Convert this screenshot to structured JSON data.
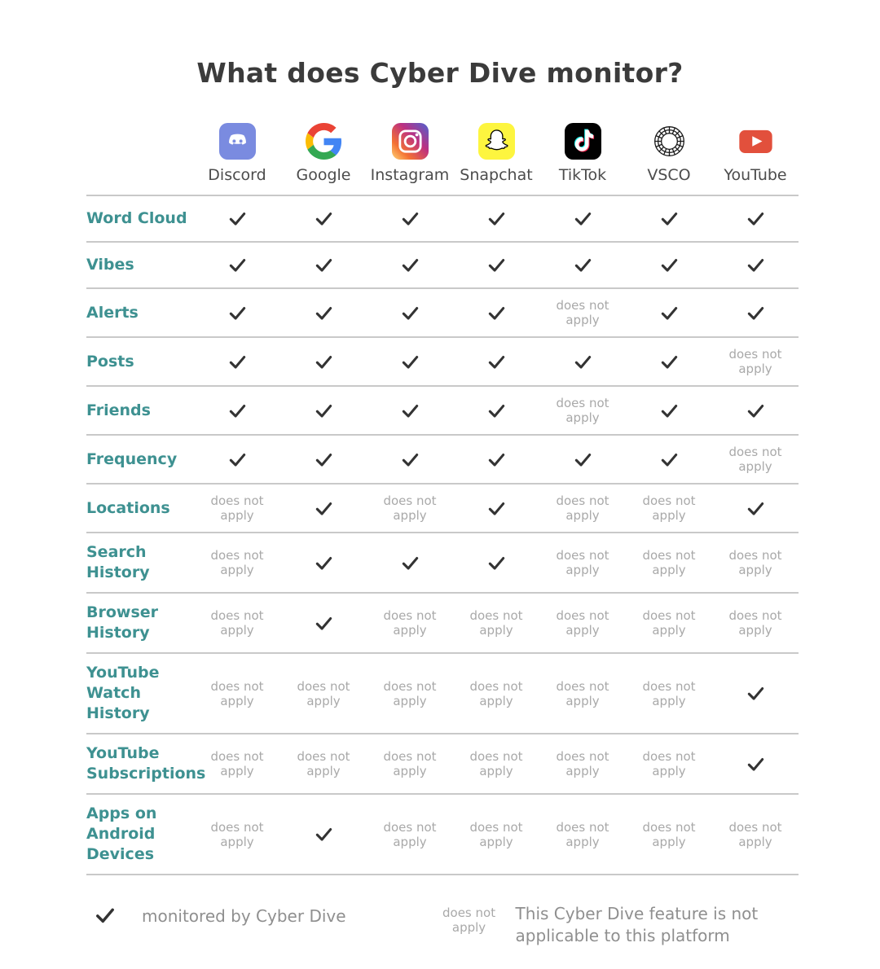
{
  "na_text": "does not apply",
  "platforms": [
    {
      "name": "Discord",
      "icon": "discord-icon"
    },
    {
      "name": "Google",
      "icon": "google-icon"
    },
    {
      "name": "Instagram",
      "icon": "instagram-icon"
    },
    {
      "name": "Snapchat",
      "icon": "snapchat-icon"
    },
    {
      "name": "TikTok",
      "icon": "tiktok-icon"
    },
    {
      "name": "VSCO",
      "icon": "vsco-icon"
    },
    {
      "name": "YouTube",
      "icon": "youtube-icon"
    }
  ],
  "chart_data": {
    "type": "table",
    "title": "What does Cyber Dive monitor?",
    "columns": [
      "Discord",
      "Google",
      "Instagram",
      "Snapchat",
      "TikTok",
      "VSCO",
      "YouTube"
    ],
    "rows": [
      {
        "feature": "Word Cloud",
        "cells": [
          "check",
          "check",
          "check",
          "check",
          "check",
          "check",
          "check"
        ]
      },
      {
        "feature": "Vibes",
        "cells": [
          "check",
          "check",
          "check",
          "check",
          "check",
          "check",
          "check"
        ]
      },
      {
        "feature": "Alerts",
        "cells": [
          "check",
          "check",
          "check",
          "check",
          "na",
          "check",
          "check"
        ]
      },
      {
        "feature": "Posts",
        "cells": [
          "check",
          "check",
          "check",
          "check",
          "check",
          "check",
          "na"
        ]
      },
      {
        "feature": "Friends",
        "cells": [
          "check",
          "check",
          "check",
          "check",
          "na",
          "check",
          "check"
        ]
      },
      {
        "feature": "Frequency",
        "cells": [
          "check",
          "check",
          "check",
          "check",
          "check",
          "check",
          "na"
        ]
      },
      {
        "feature": "Locations",
        "cells": [
          "na",
          "check",
          "na",
          "check",
          "na",
          "na",
          "check"
        ]
      },
      {
        "feature": "Search History",
        "cells": [
          "na",
          "check",
          "check",
          "check",
          "na",
          "na",
          "na"
        ]
      },
      {
        "feature": "Browser History",
        "cells": [
          "na",
          "check",
          "na",
          "na",
          "na",
          "na",
          "na"
        ]
      },
      {
        "feature": "YouTube Watch History",
        "cells": [
          "na",
          "na",
          "na",
          "na",
          "na",
          "na",
          "check"
        ]
      },
      {
        "feature": "YouTube Subscriptions",
        "cells": [
          "na",
          "na",
          "na",
          "na",
          "na",
          "na",
          "check"
        ]
      },
      {
        "feature": "Apps on Android Devices",
        "cells": [
          "na",
          "check",
          "na",
          "na",
          "na",
          "na",
          "na"
        ]
      }
    ],
    "legend_position": "bottom",
    "cell_symbols": {
      "check": "checkmark",
      "na": "does not apply"
    }
  },
  "legend": {
    "check_label": "monitored by Cyber Dive",
    "na_label": "does not apply",
    "na_description": "This Cyber Dive feature is not applicable to this platform"
  },
  "colors": {
    "feature_label": "#3E9191",
    "check": "#333333",
    "na_text": "#A9A9A9",
    "divider": "#C9C9C9",
    "title": "#3B3B3B",
    "platform_label": "#4C4C4C"
  }
}
